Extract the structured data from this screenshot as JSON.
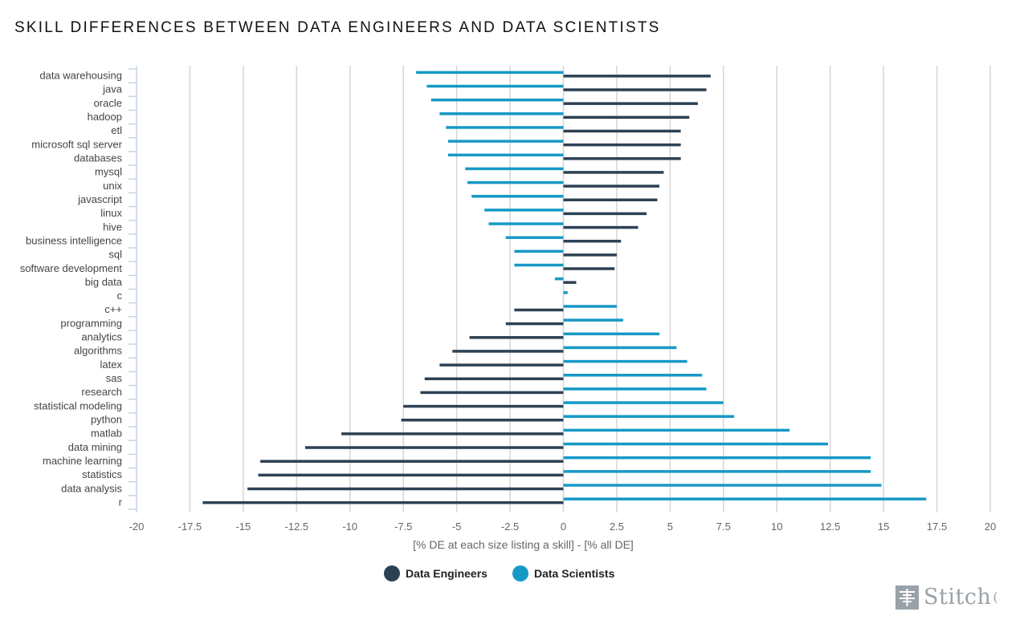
{
  "title": "SKILL DIFFERENCES BETWEEN DATA ENGINEERS AND DATA SCIENTISTS",
  "colors": {
    "engineers": "#2d4154",
    "scientists": "#1699c6",
    "grid": "#d6d6d6",
    "axis": "#c5d3e3"
  },
  "legend": {
    "engineers_label": "Data Engineers",
    "scientists_label": "Data Scientists"
  },
  "logo": {
    "text": "Stitch",
    "icon": "stitch-logo-icon",
    "trailing": "("
  },
  "chart_data": {
    "type": "bar",
    "orientation": "horizontal",
    "xlabel": "[% DE at each size listing a skill] - [% all DE]",
    "xlim": [
      -20,
      20
    ],
    "xticks": [
      "-20",
      "-17.5",
      "-15",
      "-12.5",
      "-10",
      "-7.5",
      "-5",
      "-2.5",
      "0",
      "2.5",
      "5",
      "7.5",
      "10",
      "12.5",
      "15",
      "17.5",
      "20"
    ],
    "xtick_values": [
      -20,
      -17.5,
      -15,
      -12.5,
      -10,
      -7.5,
      -5,
      -2.5,
      0,
      2.5,
      5,
      7.5,
      10,
      12.5,
      15,
      17.5,
      20
    ],
    "grid": true,
    "legend_position": "bottom-center",
    "categories": [
      "data warehousing",
      "java",
      "oracle",
      "hadoop",
      "etl",
      "microsoft sql server",
      "databases",
      "mysql",
      "unix",
      "javascript",
      "linux",
      "hive",
      "business intelligence",
      "sql",
      "software development",
      "big data",
      "c",
      "c++",
      "programming",
      "analytics",
      "algorithms",
      "latex",
      "sas",
      "research",
      "statistical modeling",
      "python",
      "matlab",
      "data mining",
      "machine learning",
      "statistics",
      "data analysis",
      "r"
    ],
    "series": [
      {
        "name": "Data Scientists",
        "values": [
          -6.9,
          -6.4,
          -6.2,
          -5.8,
          -5.5,
          -5.4,
          -5.4,
          -4.6,
          -4.5,
          -4.3,
          -3.7,
          -3.5,
          -2.7,
          -2.3,
          -2.3,
          -0.4,
          0.2,
          2.5,
          2.8,
          4.5,
          5.3,
          5.8,
          6.5,
          6.7,
          7.5,
          8.0,
          10.6,
          12.4,
          14.4,
          14.4,
          14.9,
          17.0
        ]
      },
      {
        "name": "Data Engineers",
        "values": [
          6.9,
          6.7,
          6.3,
          5.9,
          5.5,
          5.5,
          5.5,
          4.7,
          4.5,
          4.4,
          3.9,
          3.5,
          2.7,
          2.5,
          2.4,
          0.6,
          0,
          -2.3,
          -2.7,
          -4.4,
          -5.2,
          -5.8,
          -6.5,
          -6.7,
          -7.5,
          -7.6,
          -10.4,
          -12.1,
          -14.2,
          -14.3,
          -14.8,
          -16.9
        ]
      }
    ]
  }
}
